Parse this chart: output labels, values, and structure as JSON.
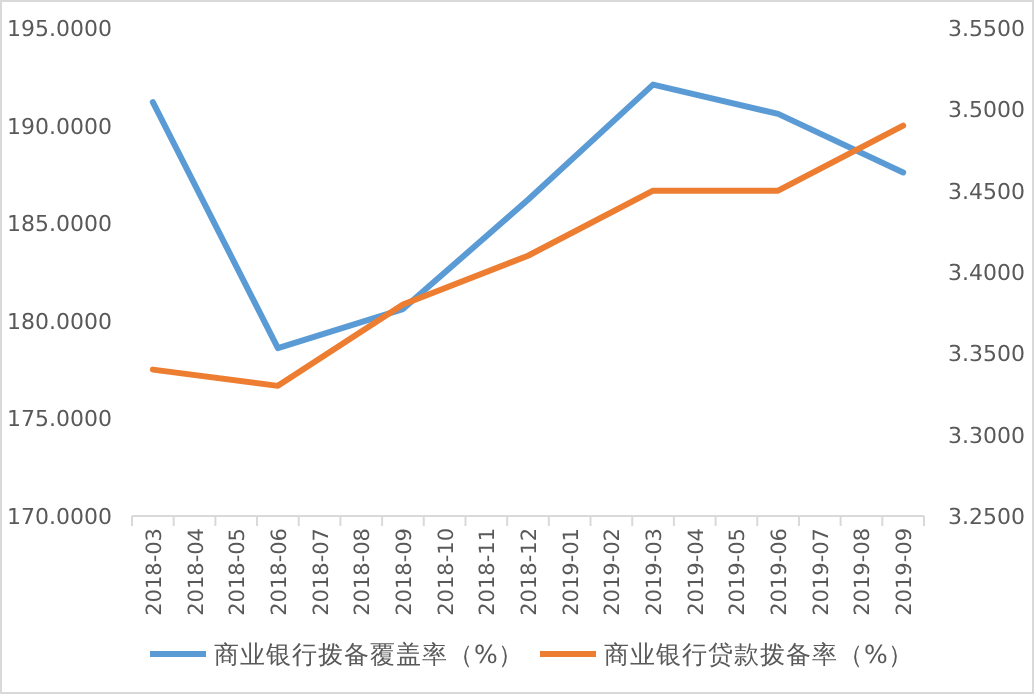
{
  "chart_data": {
    "type": "line",
    "categories": [
      "2018-03",
      "2018-04",
      "2018-05",
      "2018-06",
      "2018-07",
      "2018-08",
      "2018-09",
      "2018-10",
      "2018-11",
      "2018-12",
      "2019-01",
      "2019-02",
      "2019-03",
      "2019-04",
      "2019-05",
      "2019-06",
      "2019-07",
      "2019-08",
      "2019-09"
    ],
    "series": [
      {
        "name": "商业银行拨备覆盖率（%）",
        "color": "#5b9bd5",
        "values": [
          191.2,
          null,
          null,
          178.6,
          null,
          null,
          180.6,
          null,
          null,
          186.2,
          null,
          null,
          192.1,
          null,
          null,
          190.6,
          null,
          null,
          187.6
        ]
      },
      {
        "name": "商业银行贷款拨备率（%）",
        "color": "#ed7d31",
        "axis": "y2",
        "values": [
          3.34,
          null,
          null,
          3.33,
          null,
          null,
          3.38,
          null,
          null,
          3.41,
          null,
          null,
          3.45,
          null,
          null,
          3.45,
          null,
          null,
          3.49
        ]
      }
    ],
    "ylim": [
      170,
      195
    ],
    "yticks": [
      {
        "value": 170,
        "label": "170.0000"
      },
      {
        "value": 175,
        "label": "175.0000"
      },
      {
        "value": 180,
        "label": "180.0000"
      },
      {
        "value": 185,
        "label": "185.0000"
      },
      {
        "value": 190,
        "label": "190.0000"
      },
      {
        "value": 195,
        "label": "195.0000"
      }
    ],
    "y2lim": [
      3.25,
      3.55
    ],
    "y2ticks": [
      {
        "value": 3.25,
        "label": "3.2500"
      },
      {
        "value": 3.3,
        "label": "3.3000"
      },
      {
        "value": 3.35,
        "label": "3.3500"
      },
      {
        "value": 3.4,
        "label": "3.4000"
      },
      {
        "value": 3.45,
        "label": "3.4500"
      },
      {
        "value": 3.5,
        "label": "3.5000"
      },
      {
        "value": 3.55,
        "label": "3.5500"
      }
    ],
    "grid": false,
    "legend": "bottom",
    "marker": "none",
    "line_style": "solid"
  }
}
